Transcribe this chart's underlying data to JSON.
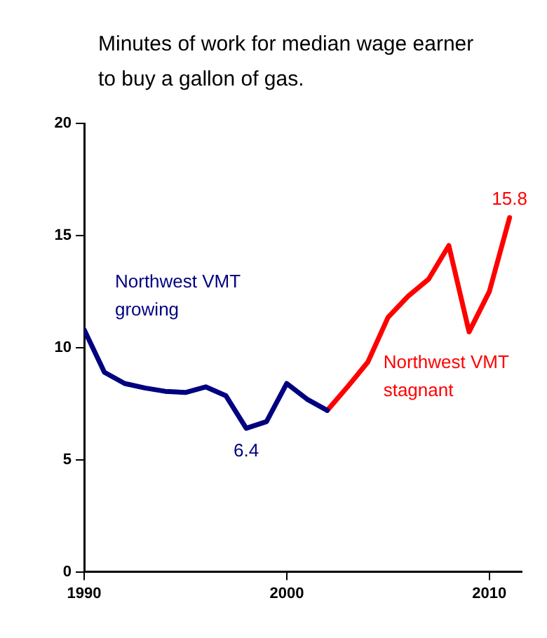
{
  "chart_data": {
    "type": "line",
    "title": "Minutes of work for median wage earner to buy a gallon of gas.",
    "xlim": [
      1990,
      2011.6
    ],
    "xticks": [
      1990,
      2000,
      2010
    ],
    "ylim": [
      0,
      20
    ],
    "yticks": [
      0,
      5,
      10,
      15,
      20
    ],
    "grid": false,
    "legend": false,
    "marker": "none",
    "line_style": "solid",
    "series": [
      {
        "name": "Northwest VMT growing",
        "color": "#000080",
        "x": [
          1990,
          1991,
          1992,
          1993,
          1994,
          1995,
          1996,
          1997,
          1998,
          1999,
          2000,
          2001,
          2002
        ],
        "values": [
          10.8,
          8.9,
          8.4,
          8.2,
          8.05,
          8.0,
          8.25,
          7.85,
          6.4,
          6.7,
          8.4,
          7.7,
          7.2
        ],
        "value_labels": [
          null,
          null,
          null,
          null,
          null,
          null,
          null,
          null,
          "6.4",
          null,
          null,
          null,
          null
        ]
      },
      {
        "name": "Northwest VMT stagnant",
        "color": "#ff0000",
        "x": [
          2002,
          2003,
          2004,
          2005,
          2006,
          2007,
          2008,
          2009,
          2010,
          2011
        ],
        "values": [
          7.2,
          8.25,
          9.35,
          11.35,
          12.3,
          13.05,
          14.55,
          10.7,
          12.5,
          15.8
        ],
        "value_labels": [
          null,
          null,
          null,
          null,
          null,
          null,
          null,
          null,
          null,
          "15.8"
        ]
      }
    ]
  }
}
